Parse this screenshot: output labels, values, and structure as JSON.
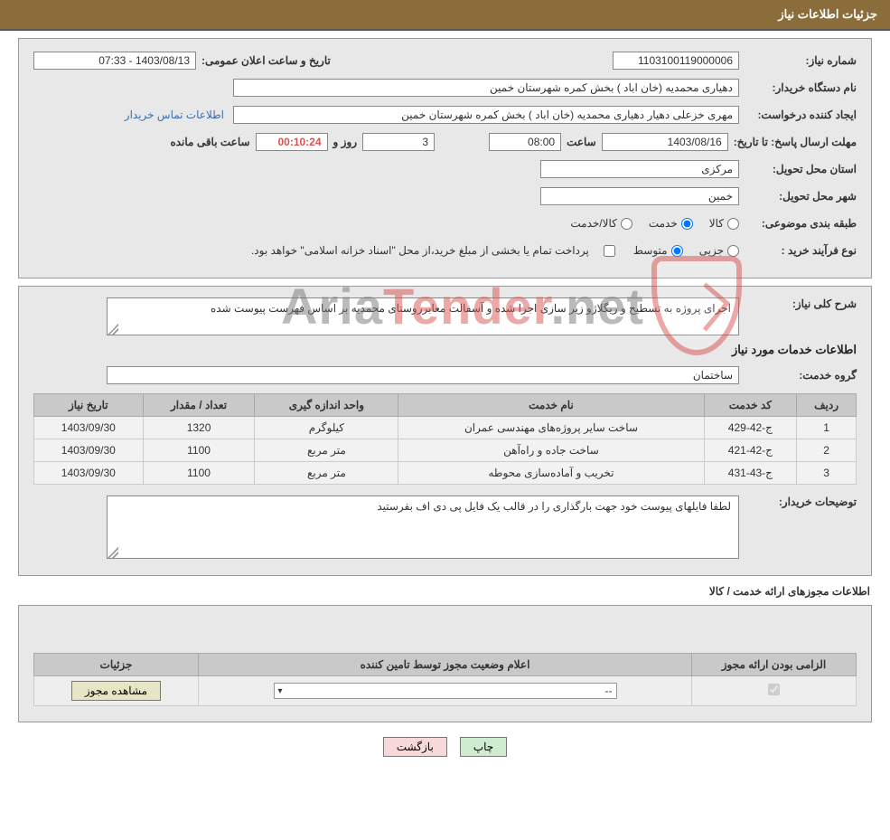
{
  "header": {
    "title": "جزئیات اطلاعات نیاز"
  },
  "need": {
    "number_label": "شماره نیاز:",
    "number": "1103100119000006",
    "announce_label": "تاریخ و ساعت اعلان عمومی:",
    "announce_value": "1403/08/13 - 07:33",
    "buyer_org_label": "نام دستگاه خریدار:",
    "buyer_org": "دهیاری محمدیه (خان اباد ) بخش کمره شهرستان خمین",
    "requester_label": "ایجاد کننده درخواست:",
    "requester": "مهری خزعلی دهیار دهیاری محمدیه (خان اباد ) بخش کمره شهرستان خمین",
    "buyer_contact_link": "اطلاعات تماس خریدار",
    "deadline_label": "مهلت ارسال پاسخ: تا تاریخ:",
    "deadline_date": "1403/08/16",
    "time_label": "ساعت",
    "deadline_time": "08:00",
    "days_value": "3",
    "days_label": "روز و",
    "timer": "00:10:24",
    "remaining_label": "ساعت باقی مانده",
    "province_label": "استان محل تحویل:",
    "province": "مرکزی",
    "city_label": "شهر محل تحویل:",
    "city": "خمین",
    "subject_class_label": "طبقه بندی موضوعی:",
    "radio_goods": "کالا",
    "radio_service": "خدمت",
    "radio_goods_service": "کالا/خدمت",
    "purchase_type_label": "نوع فرآیند خرید :",
    "radio_minor": "جزیی",
    "radio_medium": "متوسط",
    "payment_note": "پرداخت تمام یا بخشی از مبلغ خرید،از محل \"اسناد خزانه اسلامی\" خواهد بود."
  },
  "desc": {
    "overall_label": "شرح کلی نیاز:",
    "overall_text": "اجرای پروژه به تسطیح و ریگلاژو زیر سازی اجرا شده  و آسفالت معابرروستای محمدیه  بر اساس فهرست پیوست شده",
    "services_heading": "اطلاعات خدمات مورد نیاز",
    "service_group_label": "گروه خدمت:",
    "service_group": "ساختمان",
    "table_headers": {
      "row": "ردیف",
      "code": "کد خدمت",
      "name": "نام خدمت",
      "unit": "واحد اندازه گیری",
      "qty": "تعداد / مقدار",
      "need_date": "تاریخ نیاز"
    },
    "rows": [
      {
        "idx": "1",
        "code": "ج-42-429",
        "name": "ساخت سایر پروژه‌های مهندسی عمران",
        "unit": "کیلوگرم",
        "qty": "1320",
        "date": "1403/09/30"
      },
      {
        "idx": "2",
        "code": "ج-42-421",
        "name": "ساخت جاده و راه‌آهن",
        "unit": "متر مربع",
        "qty": "1100",
        "date": "1403/09/30"
      },
      {
        "idx": "3",
        "code": "ج-43-431",
        "name": "تخریب و آماده‌سازی محوطه",
        "unit": "متر مربع",
        "qty": "1100",
        "date": "1403/09/30"
      }
    ],
    "buyer_notes_label": "توضیحات خریدار:",
    "buyer_notes": "لطفا فایلهای پیوست خود جهت بارگذاری را در قالب یک فایل پی دی اف بفرستید"
  },
  "license": {
    "section_title": "اطلاعات مجوزهای ارائه خدمت / کالا",
    "headers": {
      "mandatory": "الزامی بودن ارائه مجوز",
      "status": "اعلام وضعیت مجوز توسط تامین کننده",
      "details": "جزئیات"
    },
    "select_value": "--",
    "view_btn": "مشاهده مجوز"
  },
  "footer": {
    "print": "چاپ",
    "back": "بازگشت"
  },
  "watermark": {
    "t1": "Aria",
    "t2": "Tender",
    "t3": ".net"
  },
  "colors": {
    "header_bg": "#8a6d3b",
    "section_bg": "#e8e8e8",
    "th_bg": "#c9c9c9",
    "link": "#3b6eaf",
    "timer": "#d9534f"
  }
}
